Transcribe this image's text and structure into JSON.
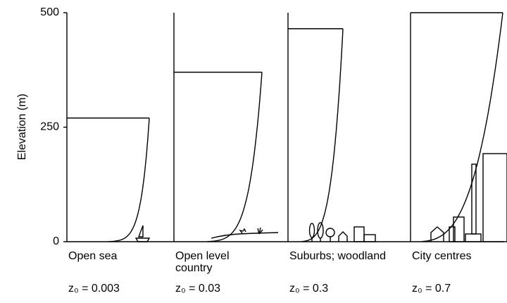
{
  "chart_data": {
    "type": "profile",
    "ylabel": "Elevation (m)",
    "categories": [
      "Open sea",
      "Open level country",
      "Suburbs; woodland",
      "City centres"
    ],
    "roughness": [
      "z₀ = 0.003",
      "z₀ = 0.03",
      "z₀ = 0.3",
      "z₀ = 0.7"
    ],
    "values": [
      270,
      370,
      465,
      500
    ],
    "ylim": [
      0,
      500
    ],
    "yticks": [
      0,
      250,
      500
    ]
  }
}
